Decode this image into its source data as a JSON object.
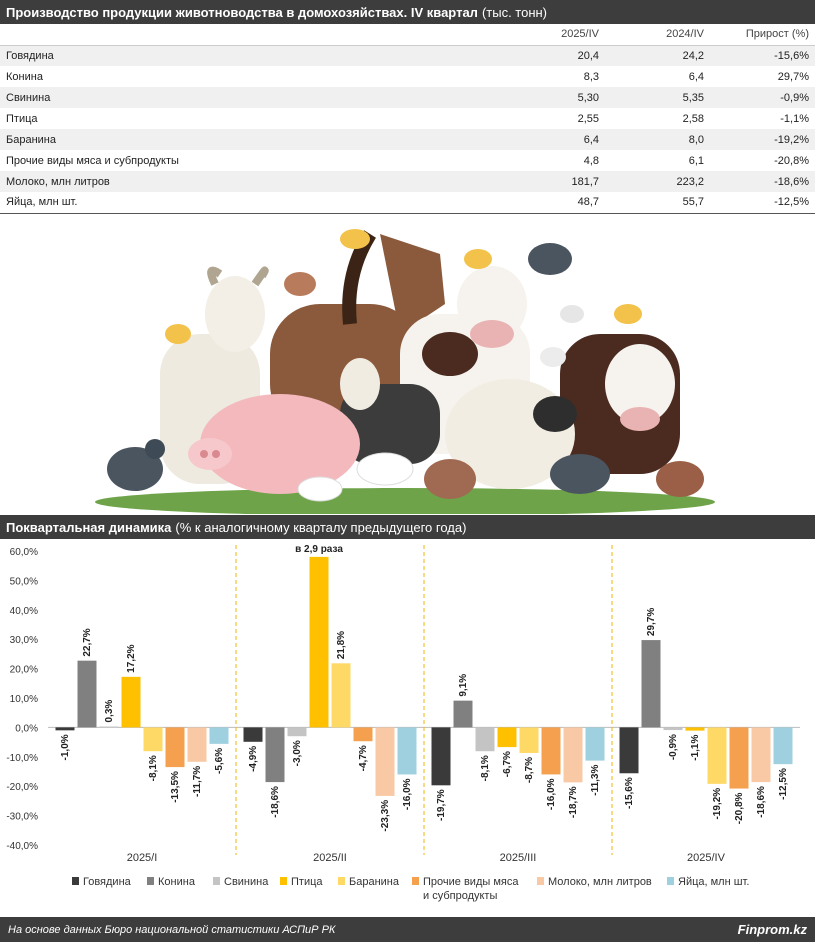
{
  "table": {
    "title": "Производство продукции животноводства в домохозяйствах. IV квартал",
    "unit": "(тыс. тонн)",
    "columns": [
      "2025/IV",
      "2024/IV",
      "Прирост (%)"
    ],
    "rows": [
      {
        "name": "Говядина",
        "v2025": "20,4",
        "v2024": "24,2",
        "growth": "-15,6%"
      },
      {
        "name": "Конина",
        "v2025": "8,3",
        "v2024": "6,4",
        "growth": "29,7%"
      },
      {
        "name": "Свинина",
        "v2025": "5,30",
        "v2024": "5,35",
        "growth": "-0,9%"
      },
      {
        "name": "Птица",
        "v2025": "2,55",
        "v2024": "2,58",
        "growth": "-1,1%"
      },
      {
        "name": "Баранина",
        "v2025": "6,4",
        "v2024": "8,0",
        "growth": "-19,2%"
      },
      {
        "name": "Прочие виды мяса и субпродукты",
        "v2025": "4,8",
        "v2024": "6,1",
        "growth": "-20,8%"
      },
      {
        "name": "Молоко, млн литров",
        "v2025": "181,7",
        "v2024": "223,2",
        "growth": "-18,6%"
      },
      {
        "name": "Яйца, млн шт.",
        "v2025": "48,7",
        "v2024": "55,7",
        "growth": "-12,5%"
      }
    ]
  },
  "chart_header": {
    "title": "Поквартальная динамика",
    "subtitle": "(% к аналогичному кварталу предыдущего года)"
  },
  "chart_data": {
    "type": "bar",
    "categories": [
      "2025/I",
      "2025/II",
      "2025/III",
      "2025/IV"
    ],
    "ylim": [
      -40,
      60
    ],
    "yticks": [
      "60,0%",
      "50,0%",
      "40,0%",
      "30,0%",
      "20,0%",
      "10,0%",
      "0,0%",
      "-10,0%",
      "-20,0%",
      "-30,0%",
      "-40,0%"
    ],
    "annotation": "в 2,9 раза",
    "series": [
      {
        "name": "Говядина",
        "color": "#3a3a3a",
        "values": [
          -1.0,
          -4.9,
          -19.7,
          -15.6
        ],
        "labels": [
          "-1,0%",
          "-4,9%",
          "-19,7%",
          "-15,6%"
        ]
      },
      {
        "name": "Конина",
        "color": "#808080",
        "values": [
          22.7,
          -18.6,
          9.1,
          29.7
        ],
        "labels": [
          "22,7%",
          "-18,6%",
          "9,1%",
          "29,7%"
        ]
      },
      {
        "name": "Свинина",
        "color": "#c4c4c4",
        "values": [
          0.3,
          -3.0,
          -8.1,
          -0.9
        ],
        "labels": [
          "0,3%",
          "-3,0%",
          "-8,1%",
          "-0,9%"
        ]
      },
      {
        "name": "Птица",
        "color": "#ffc000",
        "values": [
          17.2,
          58,
          -6.7,
          -1.1
        ],
        "labels": [
          "17,2%",
          "",
          "-6,7%",
          "-1,1%"
        ]
      },
      {
        "name": "Баранина",
        "color": "#ffd966",
        "values": [
          -8.1,
          21.8,
          -8.7,
          -19.2
        ],
        "labels": [
          "-8,1%",
          "21,8%",
          "-8,7%",
          "-19,2%"
        ]
      },
      {
        "name": "Прочие виды мяса и субпродукты",
        "color": "#f4a04f",
        "values": [
          -13.5,
          -4.7,
          -16.0,
          -20.8
        ],
        "labels": [
          "-13,5%",
          "-4,7%",
          "-16,0%",
          "-20,8%"
        ]
      },
      {
        "name": "Молоко, млн литров",
        "color": "#f8c9a4",
        "values": [
          -11.7,
          -23.3,
          -18.7,
          -18.6
        ],
        "labels": [
          "-11,7%",
          "-23,3%",
          "-18,7%",
          "-18,6%"
        ]
      },
      {
        "name": "Яйца, млн шт.",
        "color": "#9fd0df",
        "values": [
          -5.6,
          -16.0,
          -11.3,
          -12.5
        ],
        "labels": [
          "-5,6%",
          "-16,0%",
          "-11,3%",
          "-12,5%"
        ]
      }
    ],
    "legend_labels": [
      "Говядина",
      "Конина",
      "Свинина",
      "Птица",
      "Баранина",
      "Прочие виды мяса",
      "и субпродукты",
      "Молоко, млн литров",
      "Яйца, млн шт."
    ]
  },
  "footer": {
    "source": "На основе данных Бюро национальной статистики АСПиР РК",
    "brand": "Finprom.kz"
  }
}
